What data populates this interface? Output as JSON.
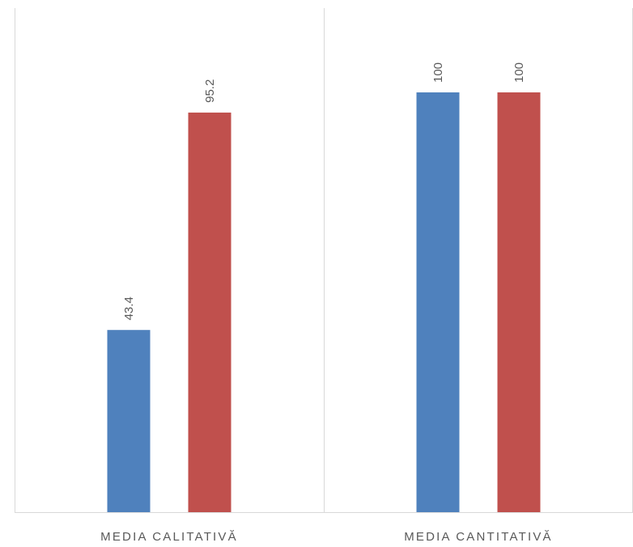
{
  "chart_data": {
    "type": "bar",
    "title": "",
    "xlabel": "",
    "ylabel": "",
    "categories": [
      "MEDIA CALITATIVĂ",
      "MEDIA CANTITATIVĂ"
    ],
    "series": [
      {
        "values": [
          43.4,
          100
        ],
        "labels": [
          "43.4",
          "100"
        ],
        "color": "#4f81bd"
      },
      {
        "values": [
          95.2,
          100
        ],
        "labels": [
          "95.2",
          "100"
        ],
        "color": "#c0504d"
      }
    ],
    "ylim": [
      0,
      120
    ],
    "grid": false,
    "legend": "none",
    "data_label_orientation": "rotated-vertical",
    "colors": {
      "axis": "#d9d9d9",
      "text": "#595959"
    }
  }
}
